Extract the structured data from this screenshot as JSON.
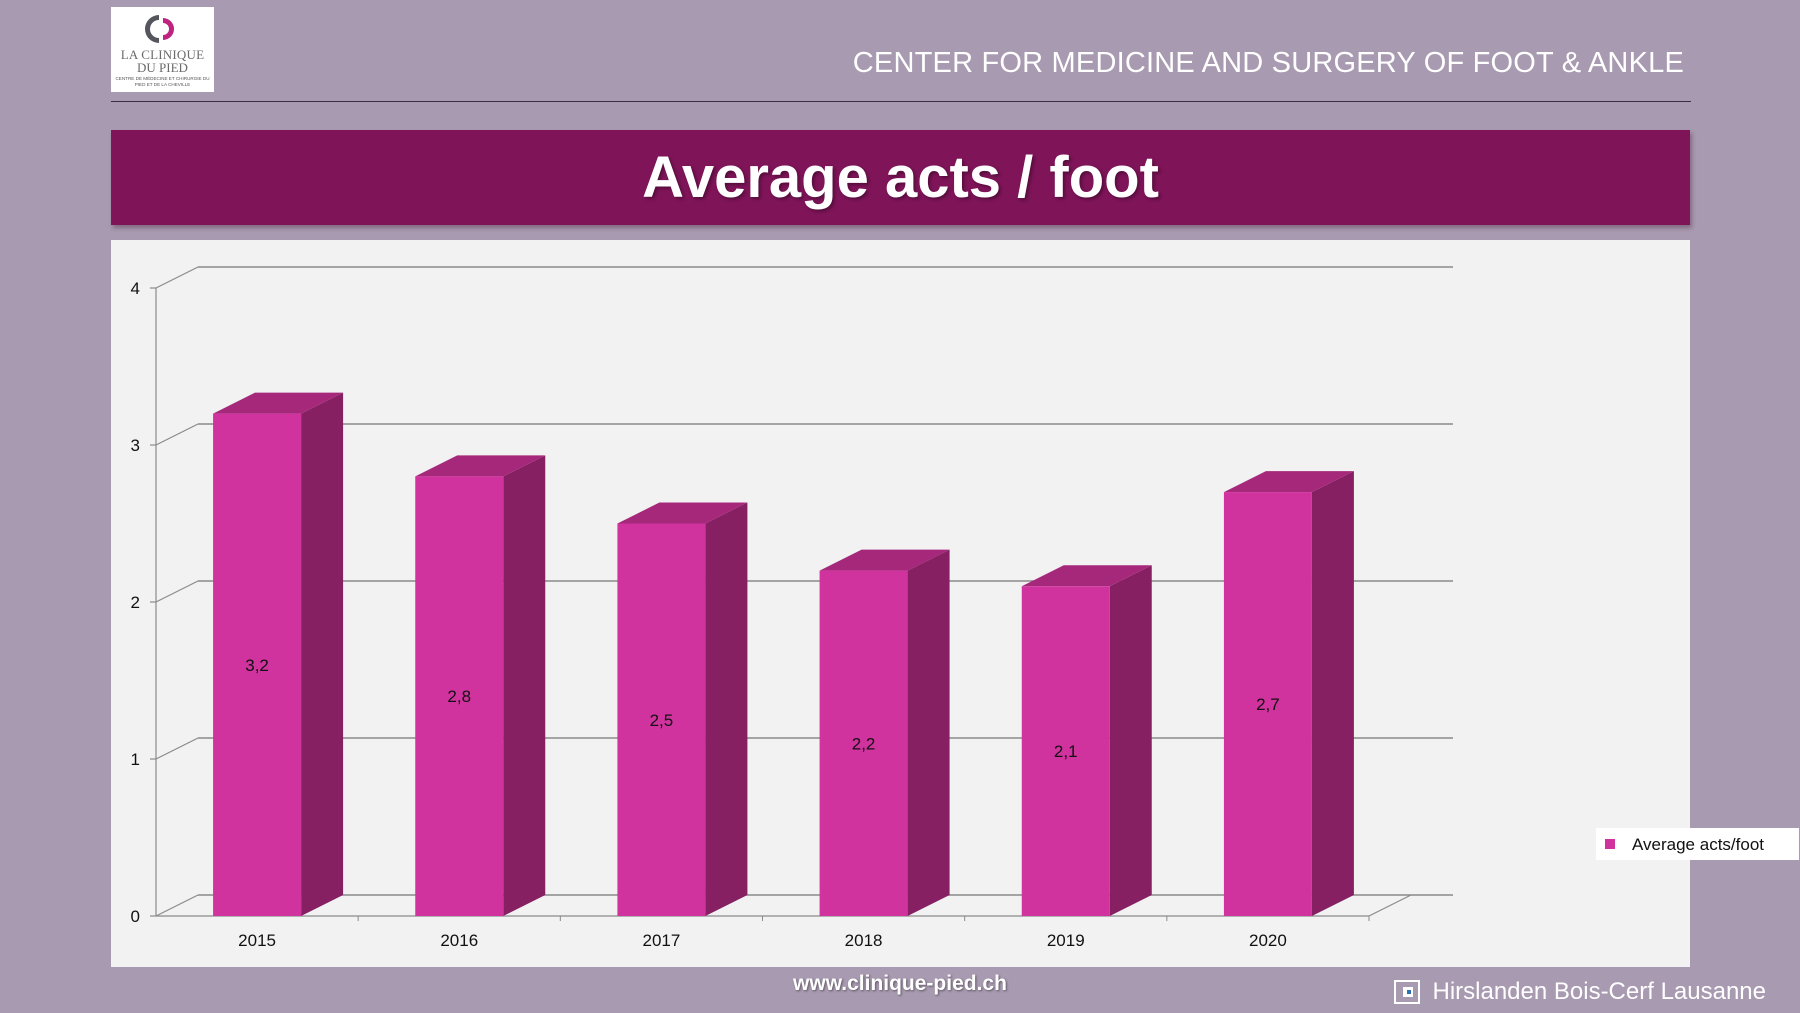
{
  "logo": {
    "line1": "LA CLINIQUE",
    "line2": "DU PIED",
    "subtitle": "Centre de médecine et chirurgie du pied et de la cheville"
  },
  "header": {
    "title": "CENTER FOR MEDICINE AND SURGERY OF FOOT & ANKLE"
  },
  "banner": {
    "title": "Average acts / foot"
  },
  "colors": {
    "background": "#a89ab0",
    "banner": "#7f1459",
    "bar_front": "#d0329e",
    "bar_side": "#862063",
    "bar_top": "#a5287a"
  },
  "chart_data": {
    "type": "bar",
    "title": "",
    "xlabel": "",
    "ylabel": "",
    "categories": [
      "2015",
      "2016",
      "2017",
      "2018",
      "2019",
      "2020"
    ],
    "series": [
      {
        "name": "Average acts/foot",
        "values": [
          3.2,
          2.8,
          2.5,
          2.2,
          2.1,
          2.7
        ],
        "labels": [
          "3,2",
          "2,8",
          "2,5",
          "2,2",
          "2,1",
          "2,7"
        ]
      }
    ],
    "ylim": [
      0,
      4
    ],
    "yticks": [
      "0",
      "1",
      "2",
      "3",
      "4"
    ],
    "grid": true,
    "legend": "right"
  },
  "footer": {
    "url": "www.clinique-pied.ch",
    "brand": "Hirslanden Bois-Cerf Lausanne"
  }
}
